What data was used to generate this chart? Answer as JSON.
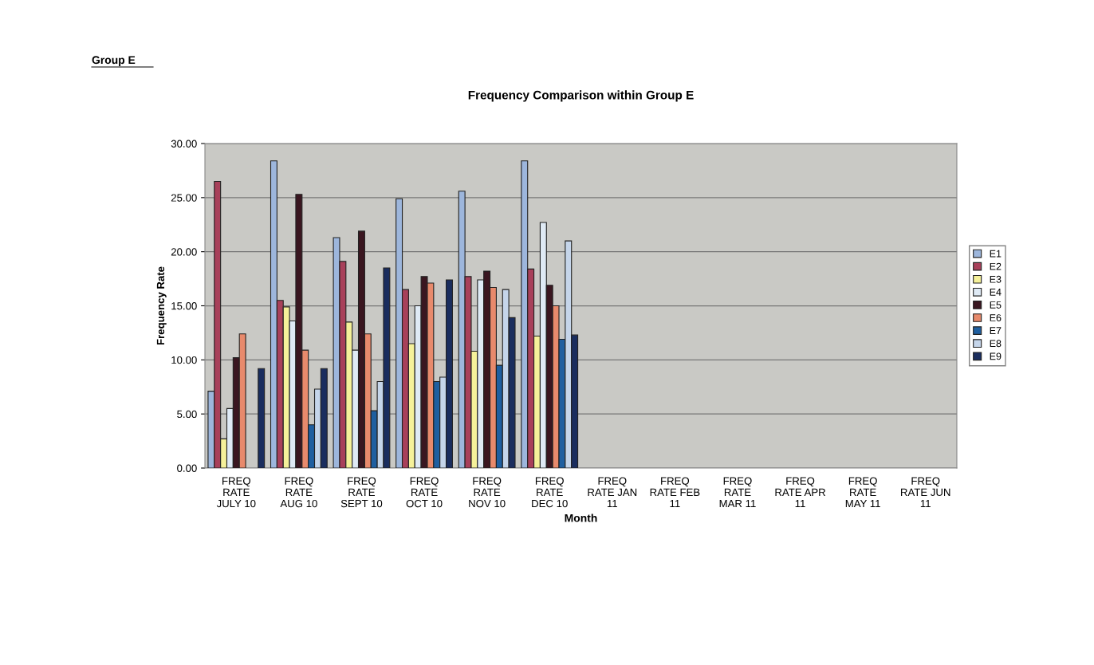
{
  "chart_data": {
    "type": "bar",
    "title": "Frequency Comparison within Group E",
    "annotations": [
      "Group E"
    ],
    "xlabel": "Month",
    "ylabel": "Frequency Rate",
    "categories": [
      "FREQ\nRATE\nJULY 10",
      "FREQ\nRATE\nAUG 10",
      "FREQ\nRATE\nSEPT 10",
      "FREQ\nRATE\nOCT 10",
      "FREQ\nRATE\nNOV 10",
      "FREQ\nRATE\nDEC 10",
      "FREQ\nRATE JAN\n11",
      "FREQ\nRATE FEB\n11",
      "FREQ\nRATE\nMAR 11",
      "FREQ\nRATE APR\n11",
      "FREQ\nRATE\nMAY 11",
      "FREQ\nRATE JUN\n11"
    ],
    "series": [
      {
        "name": "E1",
        "color": "#9db6dc",
        "values": [
          7.1,
          28.4,
          21.3,
          24.9,
          25.6,
          28.4,
          null,
          null,
          null,
          null,
          null,
          null
        ]
      },
      {
        "name": "E2",
        "color": "#a8405a",
        "values": [
          26.5,
          15.5,
          19.1,
          16.5,
          17.7,
          18.4,
          null,
          null,
          null,
          null,
          null,
          null
        ]
      },
      {
        "name": "E3",
        "color": "#f5f19a",
        "values": [
          2.7,
          14.9,
          13.5,
          11.5,
          10.8,
          12.2,
          null,
          null,
          null,
          null,
          null,
          null
        ]
      },
      {
        "name": "E4",
        "color": "#dfeaf5",
        "values": [
          5.5,
          13.6,
          10.9,
          15.0,
          17.4,
          22.7,
          null,
          null,
          null,
          null,
          null,
          null
        ]
      },
      {
        "name": "E5",
        "color": "#3a1620",
        "values": [
          10.2,
          25.3,
          21.9,
          17.7,
          18.2,
          16.9,
          null,
          null,
          null,
          null,
          null,
          null
        ]
      },
      {
        "name": "E6",
        "color": "#e88a6c",
        "values": [
          12.4,
          10.9,
          12.4,
          17.1,
          16.7,
          15.0,
          null,
          null,
          null,
          null,
          null,
          null
        ]
      },
      {
        "name": "E7",
        "color": "#1f5fa0",
        "values": [
          null,
          4.0,
          5.3,
          8.0,
          9.5,
          11.9,
          null,
          null,
          null,
          null,
          null,
          null
        ]
      },
      {
        "name": "E8",
        "color": "#c5d5ea",
        "values": [
          null,
          7.3,
          8.0,
          8.4,
          16.5,
          21.0,
          null,
          null,
          null,
          null,
          null,
          null
        ]
      },
      {
        "name": "E9",
        "color": "#1a2d5e",
        "values": [
          9.2,
          9.2,
          18.5,
          17.4,
          13.9,
          12.3,
          null,
          null,
          null,
          null,
          null,
          null
        ]
      }
    ],
    "ylim": [
      0,
      30
    ],
    "yticks": [
      {
        "value": 0,
        "label": "0.00"
      },
      {
        "value": 5,
        "label": "5.00"
      },
      {
        "value": 10,
        "label": "10.00"
      },
      {
        "value": 15,
        "label": "15.00"
      },
      {
        "value": 20,
        "label": "20.00"
      },
      {
        "value": 25,
        "label": "25.00"
      },
      {
        "value": 30,
        "label": "30.00"
      }
    ],
    "grid": "y",
    "legend": "right"
  }
}
